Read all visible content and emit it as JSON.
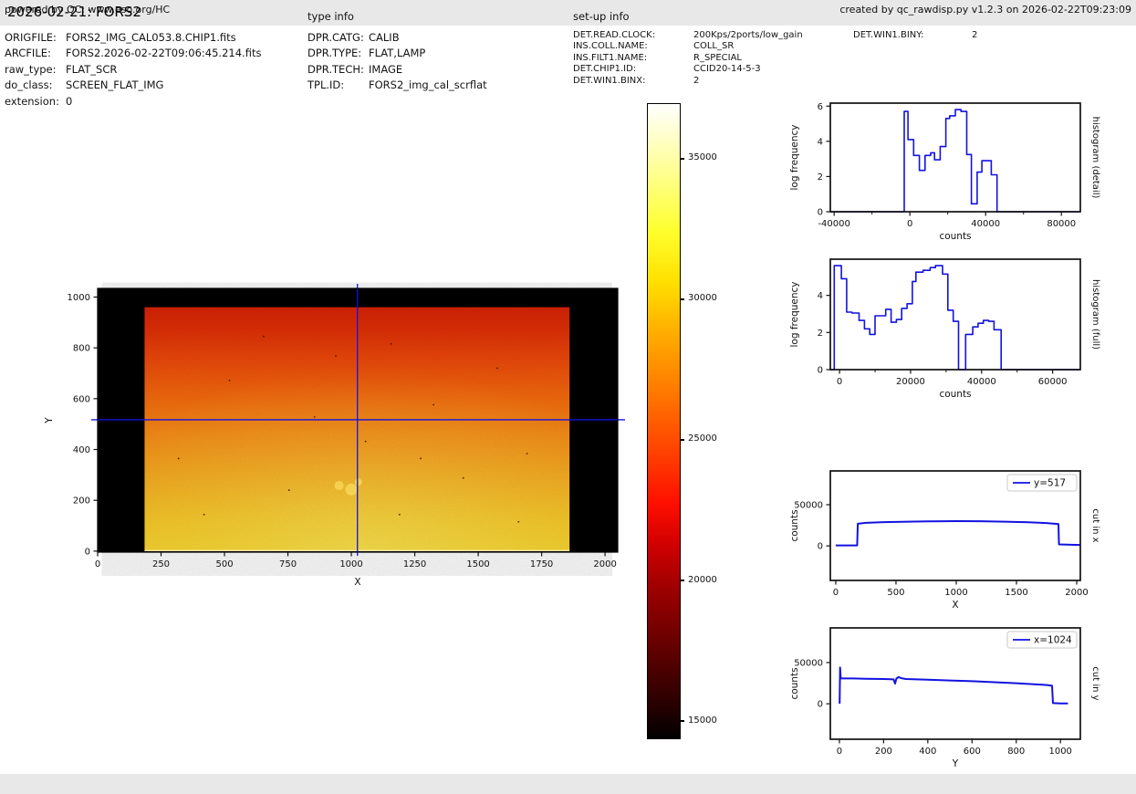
{
  "header": {
    "title": "2026-02-21: FORS2",
    "type_info_heading": "type info",
    "setup_info_heading": "set-up info"
  },
  "file_info": {
    "rows": [
      {
        "label": "ORIGFILE:",
        "value": "FORS2_IMG_CAL053.8.CHIP1.fits"
      },
      {
        "label": "ARCFILE:",
        "value": "FORS2.2026-02-22T09:06:45.214.fits"
      },
      {
        "label": "raw_type:",
        "value": "FLAT_SCR"
      },
      {
        "label": "do_class:",
        "value": "SCREEN_FLAT_IMG"
      },
      {
        "label": "extension:",
        "value": "0"
      }
    ]
  },
  "type_info": {
    "rows": [
      {
        "label": "DPR.CATG:",
        "value": "CALIB"
      },
      {
        "label": "DPR.TYPE:",
        "value": "FLAT,LAMP"
      },
      {
        "label": "DPR.TECH:",
        "value": "IMAGE"
      },
      {
        "label": "TPL.ID:",
        "value": "FORS2_img_cal_scrflat"
      }
    ]
  },
  "setup_info": {
    "col1": [
      {
        "label": "DET.READ.CLOCK:",
        "value": "200Kps/2ports/low_gain"
      },
      {
        "label": "INS.COLL.NAME:",
        "value": "COLL_SR"
      },
      {
        "label": "INS.FILT1.NAME:",
        "value": "R_SPECIAL"
      },
      {
        "label": "DET.CHIP1.ID:",
        "value": "CCID20-14-5-3"
      },
      {
        "label": "DET.WIN1.BINX:",
        "value": "2"
      }
    ],
    "col2": [
      {
        "label": "DET.WIN1.BINY:",
        "value": "2"
      }
    ]
  },
  "footer": {
    "left": "powered by QC: www.eso.org/HC",
    "right": "created by qc_rawdisp.py v1.2.3 on 2026-02-22T09:23:09"
  },
  "colors": {
    "plot_blue": "#1212e0",
    "frame_black": "#111111",
    "header_bg": "#e8e8e8",
    "speck_dark": "#3a0c00",
    "blob_bright": "#ffef70"
  },
  "chart_data": [
    {
      "id": "main_image",
      "type": "heatmap",
      "xlabel": "X",
      "ylabel": "Y",
      "xlim": [
        0,
        2050
      ],
      "ylim": [
        -4,
        1034
      ],
      "xticks_labeled": [
        0,
        250,
        500,
        750,
        1000,
        1250,
        1500,
        1750,
        2000
      ],
      "yticks": [
        0,
        200,
        400,
        600,
        800,
        1000
      ],
      "crosshair": {
        "x": 1024,
        "y": 517
      },
      "illuminated_region": {
        "x": [
          185,
          1860
        ],
        "y": [
          0,
          960
        ]
      },
      "counts_display_range": [
        14390,
        36940
      ],
      "colorbar_ticks": [
        15000,
        20000,
        25000,
        30000,
        35000
      ],
      "colorbar_gradient_bottom_to_top": [
        "#020000 0%",
        "#3a0000 8%",
        "#6e0000 16%",
        "#a00000 24%",
        "#d40000 31%",
        "#ff0f00 37%",
        "#ff4600 46%",
        "#ff7b00 55%",
        "#ffae00 64%",
        "#ffe000 72%",
        "#ffff2e 80%",
        "#ffff8f 89%",
        "#ffffff 100%"
      ],
      "image_gradient_bottom_to_top": [
        {
          "o": 0,
          "c": "#fbd62c"
        },
        {
          "o": 0.12,
          "c": "#fbc924"
        },
        {
          "o": 0.3,
          "c": "#faab1d"
        },
        {
          "o": 0.48,
          "c": "#fb8d16"
        },
        {
          "o": 0.64,
          "c": "#f96a0e"
        },
        {
          "o": 0.8,
          "c": "#ef470a"
        },
        {
          "o": 0.92,
          "c": "#e22e07"
        },
        {
          "o": 1,
          "c": "#da2305"
        }
      ]
    },
    {
      "id": "histogram_detail",
      "type": "step",
      "xlabel": "counts",
      "ylabel": "log frequency",
      "right_label": "histogram (detail)",
      "xlim": [
        -42000,
        90000
      ],
      "ylim": [
        0,
        6.17
      ],
      "xticks_labeled": [
        -40000,
        0,
        40000,
        80000
      ],
      "xticks_minor": [
        -20000,
        20000,
        60000
      ],
      "yticks": [
        0,
        2,
        4,
        6
      ],
      "points": [
        [
          -42000,
          0
        ],
        [
          -3000,
          0
        ],
        [
          -3000,
          5.7
        ],
        [
          -1000,
          5.7
        ],
        [
          -1000,
          4.1
        ],
        [
          2000,
          4.1
        ],
        [
          2000,
          3.2
        ],
        [
          5000,
          3.2
        ],
        [
          5000,
          2.35
        ],
        [
          8000,
          2.35
        ],
        [
          8000,
          3.2
        ],
        [
          11000,
          3.2
        ],
        [
          11000,
          3.35
        ],
        [
          13000,
          3.35
        ],
        [
          13000,
          2.95
        ],
        [
          16000,
          2.95
        ],
        [
          16000,
          3.7
        ],
        [
          19000,
          3.7
        ],
        [
          19000,
          5.3
        ],
        [
          21000,
          5.3
        ],
        [
          21000,
          5.45
        ],
        [
          24000,
          5.45
        ],
        [
          24000,
          5.8
        ],
        [
          27000,
          5.8
        ],
        [
          27000,
          5.7
        ],
        [
          30000,
          5.7
        ],
        [
          30000,
          3.25
        ],
        [
          32500,
          3.25
        ],
        [
          32500,
          0.45
        ],
        [
          35500,
          0.45
        ],
        [
          35500,
          2.25
        ],
        [
          38000,
          2.25
        ],
        [
          38000,
          2.9
        ],
        [
          43000,
          2.9
        ],
        [
          43000,
          2.1
        ],
        [
          46000,
          2.1
        ],
        [
          46000,
          0
        ],
        [
          90000,
          0
        ]
      ]
    },
    {
      "id": "histogram_full",
      "type": "step",
      "xlabel": "counts",
      "ylabel": "log frequency",
      "right_label": "histogram (full)",
      "xlim": [
        -2600,
        67800
      ],
      "ylim": [
        0,
        5.95
      ],
      "xticks_labeled": [
        0,
        20000,
        40000,
        60000
      ],
      "xticks_minor": [
        10000,
        30000,
        50000
      ],
      "yticks": [
        0,
        2,
        4
      ],
      "points": [
        [
          -2600,
          0
        ],
        [
          -1500,
          0
        ],
        [
          -1500,
          5.6
        ],
        [
          500,
          5.6
        ],
        [
          500,
          4.9
        ],
        [
          2000,
          4.9
        ],
        [
          2000,
          3.1
        ],
        [
          3500,
          3.1
        ],
        [
          3500,
          3.05
        ],
        [
          5500,
          3.05
        ],
        [
          5500,
          2.65
        ],
        [
          7000,
          2.65
        ],
        [
          7000,
          2.2
        ],
        [
          8500,
          2.2
        ],
        [
          8500,
          1.9
        ],
        [
          10000,
          1.9
        ],
        [
          10000,
          2.9
        ],
        [
          13000,
          2.9
        ],
        [
          13000,
          3.25
        ],
        [
          14500,
          3.25
        ],
        [
          14500,
          2.55
        ],
        [
          16000,
          2.55
        ],
        [
          16000,
          2.7
        ],
        [
          17500,
          2.7
        ],
        [
          17500,
          3.3
        ],
        [
          19000,
          3.3
        ],
        [
          19000,
          3.55
        ],
        [
          20500,
          3.55
        ],
        [
          20500,
          4.75
        ],
        [
          21500,
          4.75
        ],
        [
          21500,
          5.25
        ],
        [
          23500,
          5.25
        ],
        [
          23500,
          5.35
        ],
        [
          25500,
          5.35
        ],
        [
          25500,
          5.5
        ],
        [
          27000,
          5.5
        ],
        [
          27000,
          5.6
        ],
        [
          29000,
          5.6
        ],
        [
          29000,
          5.15
        ],
        [
          30500,
          5.15
        ],
        [
          30500,
          3.2
        ],
        [
          32000,
          3.2
        ],
        [
          32000,
          2.6
        ],
        [
          33500,
          2.6
        ],
        [
          33500,
          0
        ],
        [
          35500,
          0
        ],
        [
          35500,
          1.9
        ],
        [
          37500,
          1.9
        ],
        [
          37500,
          2.3
        ],
        [
          39000,
          2.3
        ],
        [
          39000,
          2.5
        ],
        [
          40500,
          2.5
        ],
        [
          40500,
          2.65
        ],
        [
          42000,
          2.65
        ],
        [
          42000,
          2.6
        ],
        [
          43500,
          2.6
        ],
        [
          43500,
          2.15
        ],
        [
          45500,
          2.15
        ],
        [
          45500,
          0
        ],
        [
          67800,
          0
        ]
      ]
    },
    {
      "id": "cut_x",
      "type": "line",
      "xlabel": "X",
      "ylabel": "counts",
      "right_label": "cut in x",
      "legend": "y=517",
      "xlim": [
        -45,
        2030
      ],
      "ylim": [
        -42000,
        91000
      ],
      "xticks_labeled": [
        0,
        500,
        1000,
        1500,
        2000
      ],
      "yticks": [
        0,
        50000
      ],
      "points": [
        [
          0,
          600
        ],
        [
          178,
          600
        ],
        [
          183,
          26800
        ],
        [
          250,
          27900
        ],
        [
          400,
          28800
        ],
        [
          600,
          29400
        ],
        [
          800,
          29800
        ],
        [
          1000,
          30000
        ],
        [
          1200,
          29900
        ],
        [
          1400,
          29400
        ],
        [
          1600,
          28600
        ],
        [
          1750,
          27700
        ],
        [
          1848,
          26400
        ],
        [
          1853,
          1800
        ],
        [
          1950,
          1300
        ],
        [
          2030,
          1100
        ]
      ]
    },
    {
      "id": "cut_y",
      "type": "line",
      "xlabel": "Y",
      "ylabel": "counts",
      "right_label": "cut in y",
      "legend": "x=1024",
      "xlim": [
        -41,
        1090
      ],
      "ylim": [
        -43000,
        92000
      ],
      "xticks_labeled": [
        0,
        200,
        400,
        600,
        800,
        1000
      ],
      "yticks": [
        0,
        50000
      ],
      "points": [
        [
          1,
          200
        ],
        [
          3,
          44000
        ],
        [
          6,
          30800
        ],
        [
          60,
          30700
        ],
        [
          120,
          30400
        ],
        [
          200,
          30000
        ],
        [
          245,
          29600
        ],
        [
          252,
          24500
        ],
        [
          258,
          30600
        ],
        [
          268,
          32400
        ],
        [
          280,
          31000
        ],
        [
          300,
          30000
        ],
        [
          400,
          29100
        ],
        [
          500,
          28300
        ],
        [
          600,
          27400
        ],
        [
          700,
          26200
        ],
        [
          800,
          24900
        ],
        [
          880,
          23600
        ],
        [
          940,
          22700
        ],
        [
          955,
          22200
        ],
        [
          962,
          21800
        ],
        [
          966,
          800
        ],
        [
          1000,
          500
        ],
        [
          1034,
          400
        ]
      ]
    }
  ]
}
